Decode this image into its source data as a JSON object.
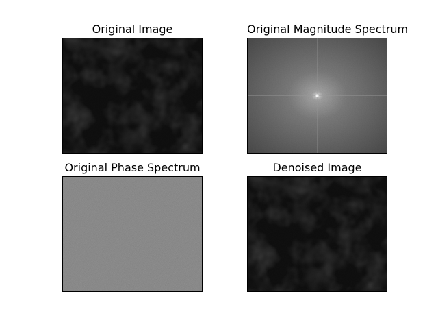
{
  "figure": {
    "panels": [
      {
        "title": "Original Image"
      },
      {
        "title": "Original Magnitude Spectrum"
      },
      {
        "title": "Original Phase Spectrum"
      },
      {
        "title": "Denoised Image"
      }
    ]
  },
  "colors": {
    "background": "#ffffff",
    "frame": "#000000",
    "image_dark": "#101010",
    "spectrum_edge": "#4a4a4a",
    "spectrum_mid": "#7a7a7a",
    "spectrum_center": "#d8d8d8",
    "phase_gray": "#808080"
  }
}
